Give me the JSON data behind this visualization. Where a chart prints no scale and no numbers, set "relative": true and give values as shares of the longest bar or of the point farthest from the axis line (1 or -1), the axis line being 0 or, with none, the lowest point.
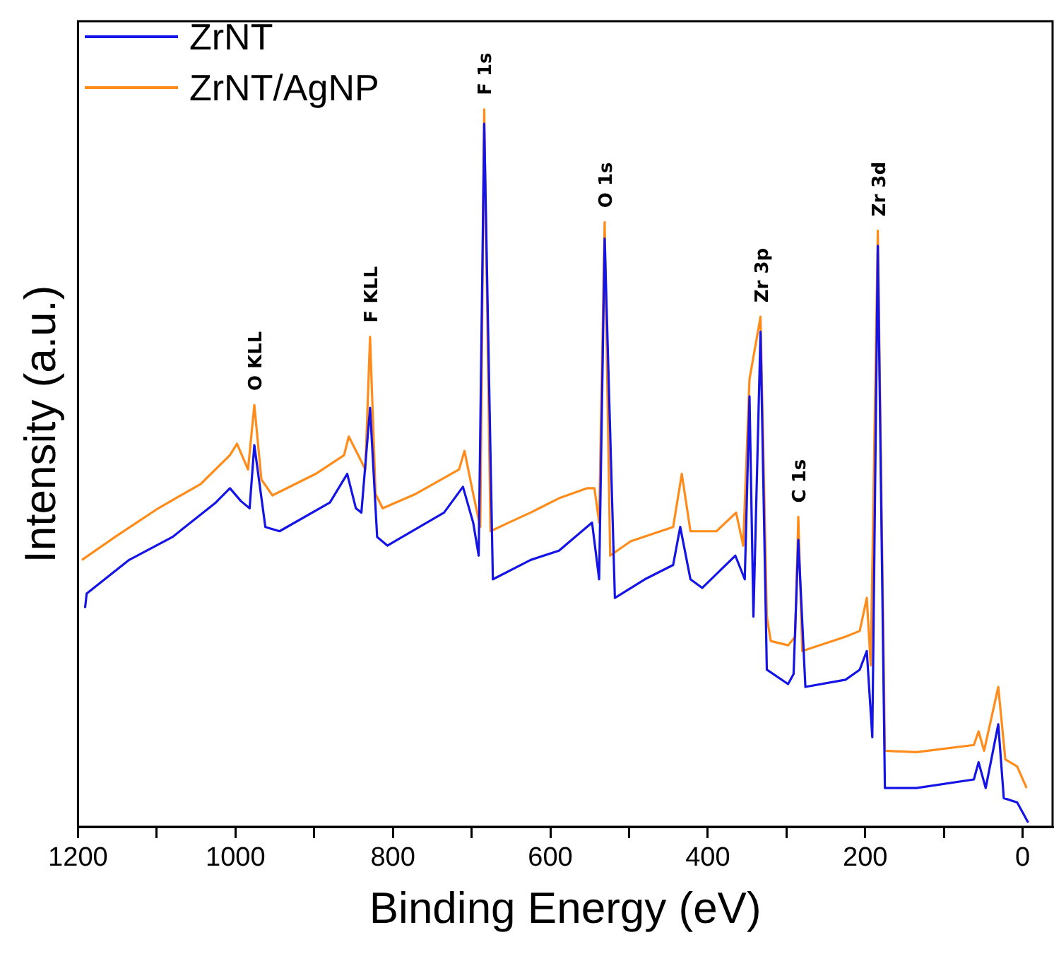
{
  "chart_data": {
    "type": "line",
    "relative": true,
    "xlabel": "Binding Energy (eV)",
    "ylabel": "Intensity (a.u.)",
    "xlim": [
      1200,
      -38
    ],
    "xticks": [
      1200,
      {
        "value": 1100,
        "label": null
      },
      1000,
      {
        "value": 900,
        "label": null
      },
      800,
      {
        "value": 700,
        "label": null
      },
      600,
      {
        "value": 500,
        "label": null
      },
      400,
      {
        "value": 300,
        "label": null
      },
      200,
      {
        "value": 100,
        "label": null
      },
      0
    ],
    "legend": "top left",
    "marker": "none",
    "line_style": "solid",
    "grid": false,
    "series": [
      {
        "name": "ZrNT",
        "color": "#1414e6",
        "x": [
          1191,
          1189,
          1135,
          1080,
          1025,
          1007,
          993,
          982,
          976,
          962,
          944,
          880,
          858,
          847,
          840,
          829,
          820,
          807,
          735,
          711,
          698,
          691,
          684,
          673,
          625,
          589,
          547,
          538,
          531,
          518,
          480,
          444,
          435,
          422,
          407,
          365,
          353,
          347,
          342,
          333,
          325,
          298,
          291,
          285,
          276,
          225,
          207,
          198,
          191,
          184,
          175,
          135,
          62,
          56,
          47,
          31,
          24,
          7,
          -7
        ],
        "values": [
          0.305,
          0.325,
          0.372,
          0.404,
          0.452,
          0.472,
          0.454,
          0.444,
          0.532,
          0.418,
          0.412,
          0.452,
          0.492,
          0.444,
          0.438,
          0.584,
          0.404,
          0.392,
          0.438,
          0.474,
          0.424,
          0.378,
          0.98,
          0.345,
          0.372,
          0.385,
          0.424,
          0.345,
          0.82,
          0.319,
          0.345,
          0.365,
          0.418,
          0.345,
          0.333,
          0.378,
          0.345,
          0.6,
          0.293,
          0.69,
          0.219,
          0.199,
          0.213,
          0.4,
          0.195,
          0.205,
          0.219,
          0.245,
          0.125,
          0.81,
          0.054,
          0.054,
          0.066,
          0.09,
          0.054,
          0.143,
          0.04,
          0.034,
          0.006
        ]
      },
      {
        "name": "ZrNT/AgNP",
        "color": "#ff8c1a",
        "x": [
          1195,
          1153,
          1098,
          1044,
          1007,
          998,
          984,
          976,
          967,
          953,
          898,
          862,
          856,
          844,
          835,
          829,
          822,
          813,
          771,
          716,
          709,
          698,
          689,
          684,
          676,
          653,
          625,
          589,
          553,
          544,
          538,
          531,
          524,
          498,
          444,
          433,
          422,
          389,
          364,
          355,
          347,
          333,
          325,
          320,
          298,
          289,
          285,
          280,
          225,
          207,
          198,
          193,
          184,
          175,
          135,
          62,
          56,
          49,
          31,
          22,
          7,
          -5
        ],
        "values": [
          0.372,
          0.404,
          0.444,
          0.478,
          0.518,
          0.534,
          0.498,
          0.588,
          0.484,
          0.462,
          0.492,
          0.518,
          0.544,
          0.518,
          0.498,
          0.683,
          0.464,
          0.444,
          0.464,
          0.498,
          0.524,
          0.464,
          0.418,
          1,
          0.412,
          0.424,
          0.438,
          0.458,
          0.472,
          0.472,
          0.424,
          0.843,
          0.378,
          0.398,
          0.418,
          0.492,
          0.412,
          0.412,
          0.438,
          0.392,
          0.624,
          0.711,
          0.293,
          0.259,
          0.253,
          0.265,
          0.432,
          0.245,
          0.265,
          0.273,
          0.319,
          0.225,
          0.831,
          0.106,
          0.104,
          0.114,
          0.133,
          0.106,
          0.195,
          0.094,
          0.084,
          0.054
        ]
      }
    ],
    "annotations": [
      {
        "text": "O KLL",
        "x": 976,
        "y": 0.588
      },
      {
        "text": "F KLL",
        "x": 829,
        "y": 0.683
      },
      {
        "text": "F 1s",
        "x": 684,
        "y": 1
      },
      {
        "text": "O 1s",
        "x": 531,
        "y": 0.843
      },
      {
        "text": "Zr 3p",
        "x": 333,
        "y": 0.711
      },
      {
        "text": "C 1s",
        "x": 285,
        "y": 0.432
      },
      {
        "text": "Zr 3d",
        "x": 184,
        "y": 0.831
      }
    ]
  }
}
